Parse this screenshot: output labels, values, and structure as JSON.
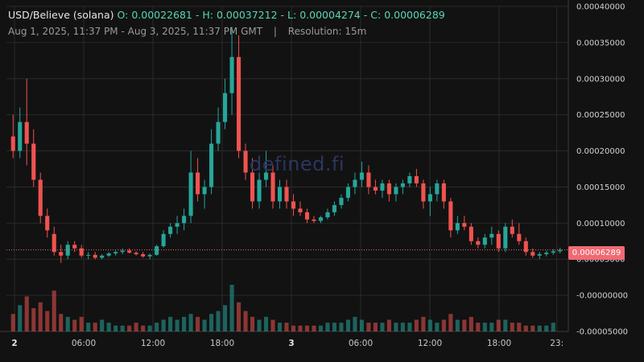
{
  "header": {
    "symbol": "USD/Believe (solana)",
    "o_label": "O:",
    "o_value": "0.00022681",
    "h_label": "H:",
    "h_value": "0.00037212",
    "l_label": "L:",
    "l_value": "0.00004274",
    "c_label": "C:",
    "c_value": "0.00006289",
    "range": "Aug 1, 2025, 11:37 PM - Aug 3, 2025, 11:37 PM GMT",
    "separator": "|",
    "resolution": "Resolution: 15m"
  },
  "watermark": "defined.fi",
  "price_tag": "0.00006289",
  "colors": {
    "up": "#26a69a",
    "down": "#ef5350",
    "bg": "#121212",
    "grid": "#2a2a2a",
    "price_line": "#f06a73"
  },
  "chart_data": {
    "type": "candlestick",
    "resolution": "15m",
    "y_ticks": [
      "0.00040000",
      "0.00035000",
      "0.00030000",
      "0.00025000",
      "0.00020000",
      "0.00015000",
      "0.00010000",
      "0.00005000",
      "-0.00000000",
      "-0.00005000"
    ],
    "x_ticks": [
      {
        "label": "2",
        "bold": true,
        "t": 0
      },
      {
        "label": "06:00",
        "bold": false,
        "t": 6
      },
      {
        "label": "12:00",
        "bold": false,
        "t": 12
      },
      {
        "label": "18:00",
        "bold": false,
        "t": 18
      },
      {
        "label": "3",
        "bold": true,
        "t": 24
      },
      {
        "label": "06:00",
        "bold": false,
        "t": 30
      },
      {
        "label": "12:00",
        "bold": false,
        "t": 36
      },
      {
        "label": "18:00",
        "bold": false,
        "t": 42
      },
      {
        "label": "23:",
        "bold": false,
        "t": 47
      }
    ],
    "ylim": [
      -5e-05,
      0.0004
    ],
    "last_close": 6.289e-05,
    "candles": [
      [
        0.00022,
        0.00025,
        0.00019,
        0.0002
      ],
      [
        0.0002,
        0.00026,
        0.00019,
        0.00024
      ],
      [
        0.00024,
        0.0003,
        0.00018,
        0.00021
      ],
      [
        0.00021,
        0.00023,
        0.00015,
        0.00016
      ],
      [
        0.00016,
        0.00017,
        0.0001,
        0.00011
      ],
      [
        0.00011,
        0.00012,
        8e-05,
        9e-05
      ],
      [
        8.5e-05,
        9.5e-05,
        5.5e-05,
        6e-05
      ],
      [
        6e-05,
        7e-05,
        4.5e-05,
        5.5e-05
      ],
      [
        5.5e-05,
        7.5e-05,
        5e-05,
        7e-05
      ],
      [
        7e-05,
        7.5e-05,
        6e-05,
        6.5e-05
      ],
      [
        6.5e-05,
        7e-05,
        5.2e-05,
        5.5e-05
      ],
      [
        5.5e-05,
        6e-05,
        5e-05,
        5.6e-05
      ],
      [
        5.6e-05,
        6e-05,
        5e-05,
        5.2e-05
      ],
      [
        5.2e-05,
        5.7e-05,
        5e-05,
        5.5e-05
      ],
      [
        5.5e-05,
        6e-05,
        5.3e-05,
        5.8e-05
      ],
      [
        5.8e-05,
        6.2e-05,
        5.5e-05,
        6e-05
      ],
      [
        6e-05,
        6.5e-05,
        5.7e-05,
        6.2e-05
      ],
      [
        6.2e-05,
        6.5e-05,
        5.8e-05,
        5.9e-05
      ],
      [
        5.9e-05,
        6.1e-05,
        5.5e-05,
        5.7e-05
      ],
      [
        5.7e-05,
        6e-05,
        5.2e-05,
        5.4e-05
      ],
      [
        5.4e-05,
        5.8e-05,
        5e-05,
        5.6e-05
      ],
      [
        5.6e-05,
        7e-05,
        5.5e-05,
        6.8e-05
      ],
      [
        6.8e-05,
        9e-05,
        6.6e-05,
        8.5e-05
      ],
      [
        8.5e-05,
        0.0001,
        8e-05,
        9.5e-05
      ],
      [
        9.5e-05,
        0.00011,
        8.5e-05,
        0.0001
      ],
      [
        0.0001,
        0.00012,
        9e-05,
        0.00011
      ],
      [
        0.00011,
        0.0002,
        0.0001,
        0.00017
      ],
      [
        0.00017,
        0.00019,
        0.00013,
        0.00014
      ],
      [
        0.00014,
        0.00016,
        0.00012,
        0.00015
      ],
      [
        0.00015,
        0.00023,
        0.00014,
        0.00021
      ],
      [
        0.00021,
        0.00026,
        0.0002,
        0.00024
      ],
      [
        0.00024,
        0.0003,
        0.00023,
        0.00028
      ],
      [
        0.00028,
        0.00037212,
        0.00025,
        0.00033
      ],
      [
        0.00033,
        0.00036,
        0.00019,
        0.0002
      ],
      [
        0.0002,
        0.00021,
        0.00016,
        0.00017
      ],
      [
        0.00017,
        0.00019,
        0.00012,
        0.00013
      ],
      [
        0.00013,
        0.00017,
        0.00012,
        0.00016
      ],
      [
        0.00016,
        0.0002,
        0.00015,
        0.00017
      ],
      [
        0.00017,
        0.00018,
        0.00012,
        0.00013
      ],
      [
        0.00013,
        0.00016,
        0.00012,
        0.00015
      ],
      [
        0.00015,
        0.00016,
        0.00012,
        0.00013
      ],
      [
        0.00013,
        0.00014,
        0.00011,
        0.00012
      ],
      [
        0.00012,
        0.00013,
        0.00011,
        0.000115
      ],
      [
        0.000115,
        0.00012,
        0.0001,
        0.000105
      ],
      [
        0.000105,
        0.00011,
        0.0001,
        0.000103
      ],
      [
        0.000103,
        0.00011,
        0.0001,
        0.000108
      ],
      [
        0.000108,
        0.00012,
        0.000105,
        0.000115
      ],
      [
        0.000115,
        0.00013,
        0.00011,
        0.000125
      ],
      [
        0.000125,
        0.00014,
        0.00012,
        0.000135
      ],
      [
        0.000135,
        0.000155,
        0.00013,
        0.00015
      ],
      [
        0.00015,
        0.00017,
        0.00014,
        0.00016
      ],
      [
        0.00016,
        0.000185,
        0.00015,
        0.00017
      ],
      [
        0.00017,
        0.00018,
        0.00014,
        0.00015
      ],
      [
        0.00015,
        0.00016,
        0.00014,
        0.000145
      ],
      [
        0.000145,
        0.00016,
        0.000135,
        0.000155
      ],
      [
        0.000155,
        0.00016,
        0.00013,
        0.00014
      ],
      [
        0.00014,
        0.000155,
        0.00013,
        0.00015
      ],
      [
        0.00015,
        0.00016,
        0.00014,
        0.000155
      ],
      [
        0.000155,
        0.00017,
        0.00015,
        0.000165
      ],
      [
        0.000165,
        0.000175,
        0.00015,
        0.000155
      ],
      [
        0.000155,
        0.00016,
        0.00012,
        0.00013
      ],
      [
        0.00013,
        0.00015,
        0.00011,
        0.00014
      ],
      [
        0.00014,
        0.00016,
        0.00013,
        0.000155
      ],
      [
        0.000155,
        0.00016,
        0.00012,
        0.00013
      ],
      [
        0.00013,
        0.000135,
        8e-05,
        9e-05
      ],
      [
        9e-05,
        0.00011,
        8.5e-05,
        0.0001
      ],
      [
        0.0001,
        0.00011,
        9e-05,
        9.5e-05
      ],
      [
        9.5e-05,
        0.0001,
        7e-05,
        7.5e-05
      ],
      [
        7.5e-05,
        8e-05,
        6.5e-05,
        7e-05
      ],
      [
        7e-05,
        8.5e-05,
        6.5e-05,
        8e-05
      ],
      [
        8e-05,
        9.5e-05,
        7e-05,
        8.5e-05
      ],
      [
        8.5e-05,
        9e-05,
        6e-05,
        6.5e-05
      ],
      [
        6.5e-05,
        0.0001,
        6e-05,
        9.5e-05
      ],
      [
        9.5e-05,
        0.000105,
        8e-05,
        8.5e-05
      ],
      [
        8.5e-05,
        0.0001,
        7e-05,
        7.5e-05
      ],
      [
        7.5e-05,
        8e-05,
        5.5e-05,
        6e-05
      ],
      [
        6e-05,
        6.5e-05,
        5.2e-05,
        5.5e-05
      ],
      [
        5.5e-05,
        6e-05,
        5e-05,
        5.7e-05
      ],
      [
        5.7e-05,
        6.2e-05,
        5.4e-05,
        5.9e-05
      ],
      [
        5.9e-05,
        6.4e-05,
        5.6e-05,
        6.1e-05
      ],
      [
        6.1e-05,
        6.6e-05,
        5.8e-05,
        6.289e-05
      ]
    ],
    "volumes": [
      0.6,
      0.9,
      1.2,
      0.8,
      1.0,
      0.7,
      1.4,
      0.6,
      0.5,
      0.4,
      0.5,
      0.3,
      0.3,
      0.4,
      0.3,
      0.2,
      0.2,
      0.2,
      0.3,
      0.2,
      0.2,
      0.3,
      0.4,
      0.5,
      0.4,
      0.5,
      0.6,
      0.5,
      0.4,
      0.6,
      0.7,
      0.9,
      1.6,
      1.0,
      0.7,
      0.5,
      0.4,
      0.5,
      0.4,
      0.3,
      0.3,
      0.2,
      0.2,
      0.2,
      0.2,
      0.2,
      0.3,
      0.3,
      0.3,
      0.4,
      0.5,
      0.4,
      0.3,
      0.3,
      0.3,
      0.4,
      0.3,
      0.3,
      0.3,
      0.4,
      0.5,
      0.4,
      0.3,
      0.4,
      0.6,
      0.4,
      0.4,
      0.5,
      0.3,
      0.3,
      0.3,
      0.4,
      0.4,
      0.3,
      0.3,
      0.2,
      0.2,
      0.2,
      0.2,
      0.3
    ]
  }
}
